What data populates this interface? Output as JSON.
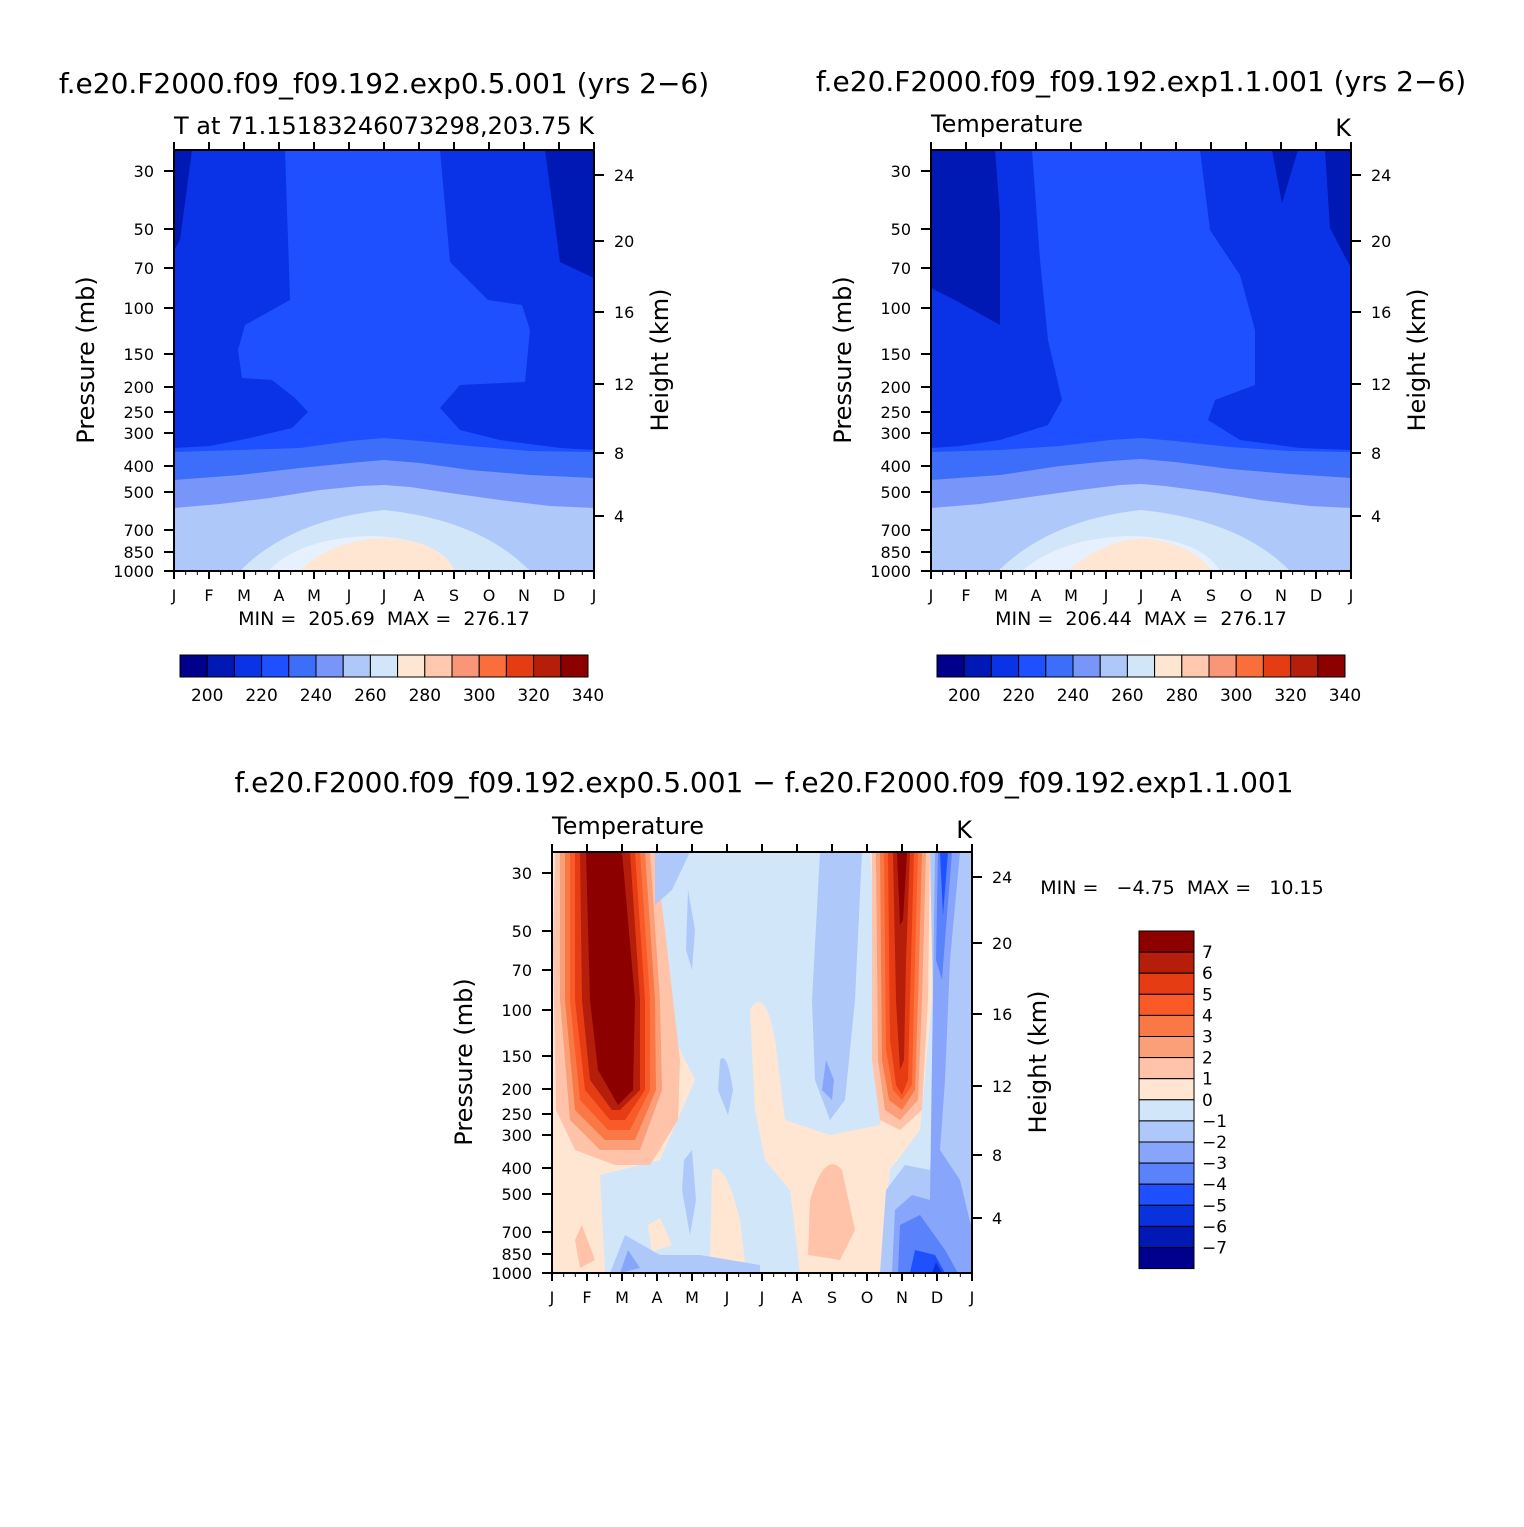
{
  "chart_data": [
    {
      "type": "contour",
      "title": "f.e20.F2000.f09_f09.192.exp0.5.001 (yrs 2−6)",
      "subtitle_left": "T at 71.15183246073298,203.75",
      "subtitle_right": "K",
      "ylabel": "Pressure (mb)",
      "y2label": "Height (km)",
      "x_ticks": [
        "J",
        "F",
        "M",
        "A",
        "M",
        "J",
        "J",
        "A",
        "S",
        "O",
        "N",
        "D",
        "J"
      ],
      "y_ticks": [
        "30",
        "50",
        "70",
        "100",
        "150",
        "200",
        "250",
        "300",
        "400",
        "500",
        "700",
        "850",
        "1000"
      ],
      "y2_ticks": [
        "24",
        "20",
        "16",
        "12",
        "8",
        "4"
      ],
      "min_max": "MIN =  205.69  MAX =  276.17",
      "colorbar_labels": [
        "200",
        "220",
        "240",
        "260",
        "280",
        "300",
        "320",
        "340"
      ],
      "levels": [
        200,
        210,
        220,
        230,
        240,
        250,
        260,
        270,
        280,
        290,
        300,
        310,
        320,
        330,
        340
      ]
    },
    {
      "type": "contour",
      "title": "f.e20.F2000.f09_f09.192.exp1.1.001 (yrs 2−6)",
      "subtitle_left": "Temperature",
      "subtitle_right": "K",
      "ylabel": "Pressure (mb)",
      "y2label": "Height (km)",
      "x_ticks": [
        "J",
        "F",
        "M",
        "A",
        "M",
        "J",
        "J",
        "A",
        "S",
        "O",
        "N",
        "D",
        "J"
      ],
      "y_ticks": [
        "30",
        "50",
        "70",
        "100",
        "150",
        "200",
        "250",
        "300",
        "400",
        "500",
        "700",
        "850",
        "1000"
      ],
      "y2_ticks": [
        "24",
        "20",
        "16",
        "12",
        "8",
        "4"
      ],
      "min_max": "MIN =  206.44  MAX =  276.17",
      "colorbar_labels": [
        "200",
        "220",
        "240",
        "260",
        "280",
        "300",
        "320",
        "340"
      ],
      "levels": [
        200,
        210,
        220,
        230,
        240,
        250,
        260,
        270,
        280,
        290,
        300,
        310,
        320,
        330,
        340
      ]
    },
    {
      "type": "contour",
      "title": "f.e20.F2000.f09_f09.192.exp0.5.001 − f.e20.F2000.f09_f09.192.exp1.1.001",
      "subtitle_left": "Temperature",
      "subtitle_right": "K",
      "ylabel": "Pressure (mb)",
      "y2label": "Height (km)",
      "x_ticks": [
        "J",
        "F",
        "M",
        "A",
        "M",
        "J",
        "J",
        "A",
        "S",
        "O",
        "N",
        "D",
        "J"
      ],
      "y_ticks": [
        "30",
        "50",
        "70",
        "100",
        "150",
        "200",
        "250",
        "300",
        "400",
        "500",
        "700",
        "850",
        "1000"
      ],
      "y2_ticks": [
        "24",
        "20",
        "16",
        "12",
        "8",
        "4"
      ],
      "min_max": "MIN =   −4.75  MAX =   10.15",
      "colorbar_labels": [
        "7",
        "6",
        "5",
        "4",
        "3",
        "2",
        "1",
        "0",
        "−1",
        "−2",
        "−3",
        "−4",
        "−5",
        "−6",
        "−7"
      ],
      "levels": [
        -7,
        -6,
        -5,
        -4,
        -3,
        -2,
        -1,
        0,
        1,
        2,
        3,
        4,
        5,
        6,
        7
      ]
    }
  ],
  "colors": {
    "abs_palette": [
      "#00008c",
      "#0018b4",
      "#0a32e6",
      "#1e50ff",
      "#3c6efa",
      "#7896fa",
      "#afc8fa",
      "#d2e6fa",
      "#ffe6d2",
      "#ffc8af",
      "#fa9678",
      "#fa6e3c",
      "#e63c14",
      "#b41e0a",
      "#8c0000"
    ],
    "diff_palette_top_down": [
      "#8c0000",
      "#b41e0a",
      "#e63c14",
      "#fa5a28",
      "#fa7846",
      "#fa9f78",
      "#ffc3aa",
      "#ffe6d2",
      "#d2e6fa",
      "#afc8fa",
      "#87a5fa",
      "#5a82fa",
      "#1e50ff",
      "#0a32dc",
      "#0018b4",
      "#00008c"
    ]
  }
}
